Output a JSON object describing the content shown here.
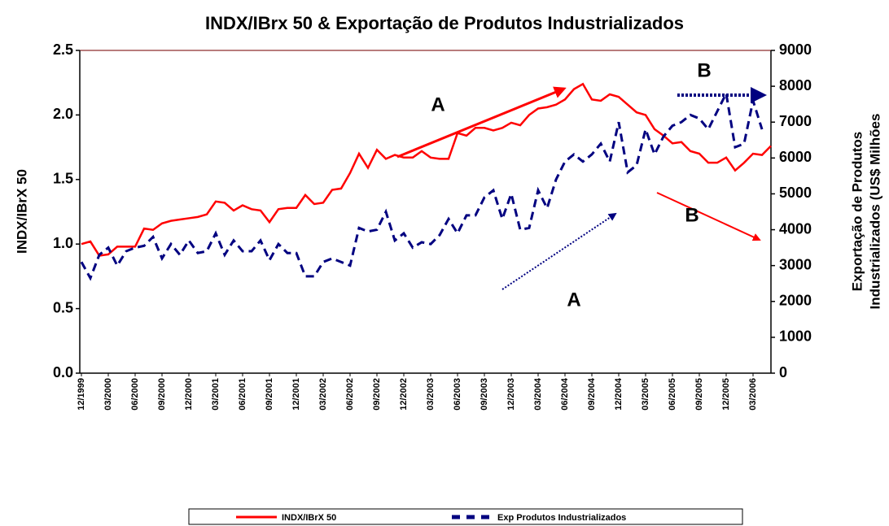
{
  "chart_data": {
    "type": "line",
    "title": "INDX/IBrx 50 & Exportação de Produtos Industrializados",
    "y_label": "INDX/IBrX 50",
    "y2_label": [
      "Exportação de Produtos",
      "Industrializados (US$ Milhões"
    ],
    "annotations": [
      "A",
      "B",
      "A",
      "B"
    ],
    "categories": [
      "12/1999",
      null,
      null,
      "03/2000",
      null,
      null,
      "06/2000",
      null,
      null,
      "09/2000",
      null,
      null,
      "12/2000",
      null,
      null,
      "03/2001",
      null,
      null,
      "06/2001",
      null,
      null,
      "09/2001",
      null,
      null,
      "12/2001",
      null,
      null,
      "03/2002",
      null,
      null,
      "06/2002",
      null,
      null,
      "09/2002",
      null,
      null,
      "12/2002",
      null,
      null,
      "03/2003",
      null,
      null,
      "06/2003",
      null,
      null,
      "09/2003",
      null,
      null,
      "12/2003",
      null,
      null,
      "03/2004",
      null,
      null,
      "06/2004",
      null,
      null,
      "09/2004",
      null,
      null,
      "12/2004",
      null,
      null,
      "03/2005",
      null,
      null,
      "06/2005",
      null,
      null,
      "09/2005",
      null,
      null,
      "12/2005",
      null,
      null,
      "03/2006",
      null,
      null
    ],
    "series": [
      {
        "name": "INDX/IBrX 50",
        "color": "#ff0000",
        "values": [
          1.0,
          1.02,
          0.91,
          0.92,
          0.98,
          0.98,
          0.98,
          1.12,
          1.11,
          1.16,
          1.18,
          1.19,
          1.2,
          1.21,
          1.23,
          1.33,
          1.32,
          1.26,
          1.3,
          1.27,
          1.26,
          1.17,
          1.27,
          1.28,
          1.28,
          1.38,
          1.31,
          1.32,
          1.42,
          1.43,
          1.55,
          1.7,
          1.59,
          1.73,
          1.66,
          1.69,
          1.67,
          1.67,
          1.72,
          1.67,
          1.66,
          1.66,
          1.86,
          1.84,
          1.9,
          1.9,
          1.88,
          1.9,
          1.94,
          1.92,
          2.0,
          2.05,
          2.06,
          2.08,
          2.12,
          2.2,
          2.24,
          2.12,
          2.11,
          2.16,
          2.14,
          2.08,
          2.02,
          2.0,
          1.89,
          1.84,
          1.78,
          1.79,
          1.72,
          1.7,
          1.63,
          1.63,
          1.67,
          1.57,
          1.63,
          1.7,
          1.69,
          1.76
        ]
      },
      {
        "name": "Exp Produtos Industrializados",
        "color": "#000080",
        "axis": "y2",
        "values": [
          3100,
          2650,
          3300,
          3500,
          3000,
          3400,
          3500,
          3550,
          3800,
          3200,
          3600,
          3300,
          3700,
          3350,
          3400,
          3900,
          3300,
          3700,
          3400,
          3400,
          3700,
          3150,
          3600,
          3350,
          3350,
          2700,
          2700,
          3100,
          3200,
          3100,
          3000,
          4050,
          3950,
          4000,
          4500,
          3700,
          3900,
          3500,
          3650,
          3600,
          3850,
          4300,
          3900,
          4400,
          4400,
          4900,
          5100,
          4300,
          5000,
          4000,
          4050,
          5100,
          4600,
          5400,
          5900,
          6100,
          5900,
          6100,
          6400,
          5900,
          7000,
          5600,
          5800,
          6800,
          6100,
          6600,
          6900,
          7000,
          7200,
          7100,
          6800,
          7300,
          7800,
          6300,
          6400,
          7600,
          6800,
          null
        ]
      }
    ],
    "ylim": [
      0,
      2.5
    ],
    "yticks": [
      {
        "value": 0,
        "label": "0.0"
      },
      0.5,
      {
        "value": 1,
        "label": "1.0"
      },
      1.5,
      {
        "value": 2,
        "label": "2.0"
      },
      2.5
    ],
    "y2lim": [
      0,
      9000
    ],
    "y2ticks": [
      0,
      1000,
      2000,
      3000,
      4000,
      5000,
      6000,
      7000,
      8000,
      9000
    ],
    "grid": false
  }
}
